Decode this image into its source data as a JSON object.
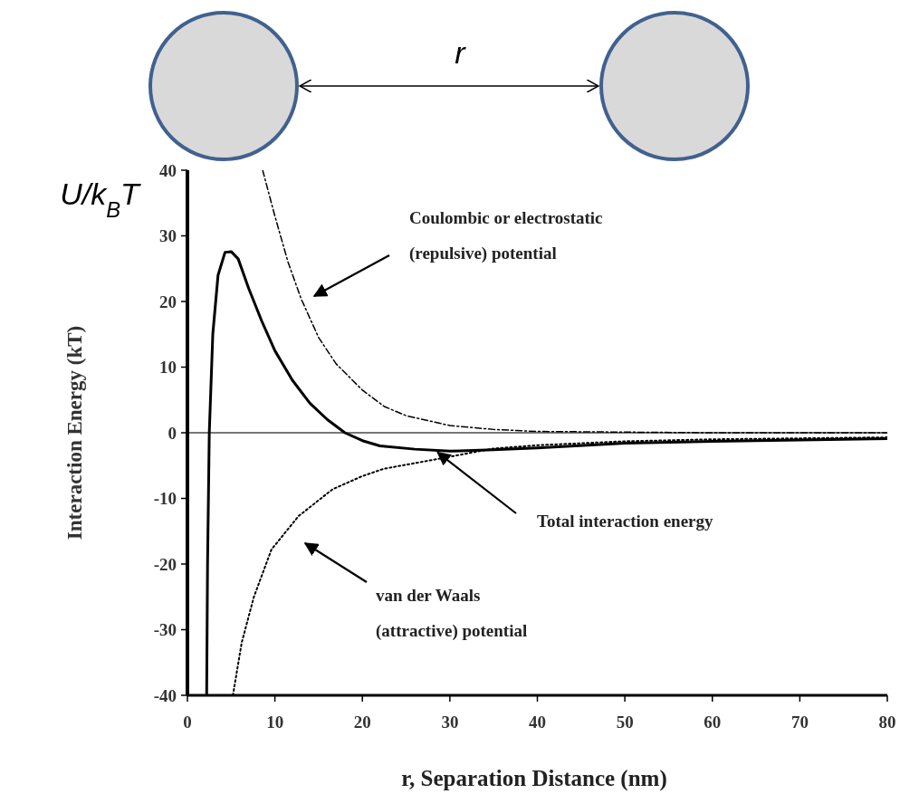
{
  "chart_data": {
    "type": "line",
    "xlabel": "r, Separation Distance (nm)",
    "ylabel": "Interaction Energy (kT)",
    "xlim": [
      0,
      80
    ],
    "xticks": [
      0,
      10,
      20,
      30,
      40,
      50,
      60,
      70,
      80
    ],
    "ylim": [
      -40,
      40
    ],
    "yticks": [
      -40,
      -30,
      -20,
      -10,
      0,
      10,
      20,
      30,
      40
    ],
    "grid": false,
    "series": [
      {
        "color": "#000000",
        "line_style": "solid",
        "x": [
          2.2,
          2.3,
          2.5,
          2.9,
          3.5,
          4.3,
          5,
          5.8,
          7,
          8.5,
          10,
          12,
          14,
          16,
          18,
          20,
          22,
          26,
          30,
          35,
          40,
          50,
          60,
          70,
          80
        ],
        "values": [
          -40,
          -20,
          0,
          15,
          24,
          27.5,
          27.6,
          26.5,
          22,
          17,
          12.5,
          8,
          4.5,
          2,
          0,
          -1.2,
          -2,
          -2.5,
          -2.8,
          -2.6,
          -2.3,
          -1.6,
          -1.3,
          -1.1,
          -0.9
        ]
      },
      {
        "color": "#000000",
        "line_style": "dashed",
        "x": [
          8.6,
          10,
          11.5,
          13,
          15,
          17,
          20,
          22.5,
          25,
          30,
          35,
          40,
          50,
          60,
          80
        ],
        "values": [
          40,
          33,
          26,
          20.4,
          14.5,
          10.5,
          6.5,
          4,
          2.6,
          1.1,
          0.5,
          0.2,
          0.1,
          0,
          0
        ]
      },
      {
        "color": "#000000",
        "line_style": "dotted",
        "x": [
          5.2,
          6.2,
          7.6,
          9.6,
          12.7,
          16.6,
          20,
          22.4,
          28.6,
          35,
          40,
          50,
          60,
          80
        ],
        "values": [
          -40,
          -32,
          -25,
          -17.8,
          -12.7,
          -8.6,
          -6.6,
          -5.5,
          -4,
          -2.4,
          -1.9,
          -1.3,
          -1,
          -0.7
        ]
      }
    ],
    "ref_lines": [
      {
        "axis": "y",
        "value": 0,
        "color": "#777777"
      }
    ],
    "annotations": [
      "Coulombic or electrostatic\n(repulsive) potential",
      {
        "text": "Total interaction energy",
        "x": 28.6,
        "y": -3
      },
      "van der Waals\n(attractive) potential",
      "U/k$_{B}$T",
      "r"
    ]
  }
}
